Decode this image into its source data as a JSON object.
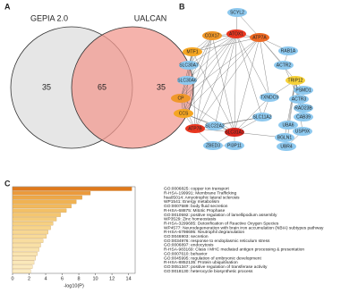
{
  "panels": [
    "A",
    "B",
    "C"
  ],
  "venn": {
    "sets": [
      "GEPIA 2.0",
      "UALCAN"
    ],
    "left_only": "35",
    "both": "65",
    "right_only": "35"
  },
  "network": {
    "nodes": [
      {
        "label": "SCYL2",
        "color": "#8ec9ef"
      },
      {
        "label": "COX17",
        "color": "#f0982a"
      },
      {
        "label": "ATOX1",
        "color": "#e8361f"
      },
      {
        "label": "ATP7A",
        "color": "#ee6a24"
      },
      {
        "label": "MTF1",
        "color": "#f5a623"
      },
      {
        "label": "RAB1A",
        "color": "#8ec9ef"
      },
      {
        "label": "SLC30A7",
        "color": "#8ec9ef"
      },
      {
        "label": "ACTR2",
        "color": "#8ec9ef"
      },
      {
        "label": "SLC30A6",
        "color": "#8ec9ef"
      },
      {
        "label": "TRIP12",
        "color": "#f7d23a"
      },
      {
        "label": "PSMD1",
        "color": "#8ec9ef"
      },
      {
        "label": "CP",
        "color": "#f0982a"
      },
      {
        "label": "TXNDC9",
        "color": "#8ec9ef"
      },
      {
        "label": "ACTR3",
        "color": "#8ec9ef"
      },
      {
        "label": "RAD23B",
        "color": "#8ec9ef"
      },
      {
        "label": "CCS",
        "color": "#f5a623"
      },
      {
        "label": "CAB39",
        "color": "#8ec9ef"
      },
      {
        "label": "SLC11A2",
        "color": "#8ec9ef"
      },
      {
        "label": "UBA6",
        "color": "#8ec9ef"
      },
      {
        "label": "USP9X",
        "color": "#8ec9ef"
      },
      {
        "label": "ATP7B",
        "color": "#e8361f"
      },
      {
        "label": "SLC22A2",
        "color": "#8ec9ef"
      },
      {
        "label": "SLC31A1",
        "color": "#d8241c"
      },
      {
        "label": "BGLN1",
        "color": "#8ec9ef"
      },
      {
        "label": "UBR4",
        "color": "#8ec9ef"
      },
      {
        "label": "ZBED3",
        "color": "#8ec9ef"
      },
      {
        "label": "PI3P11",
        "color": "#8ec9ef"
      }
    ]
  },
  "chart_data": {
    "type": "barh",
    "x_label": "-log10(P)",
    "categories": [
      "GO:0006825: copper ion transport",
      "R-HSA-199991: Membrane Trafficking",
      "hsa05014: Amyotrophic lateral sclerosis",
      "WP1541: Energy metabolism",
      "GO:0007589: body fluid secretion",
      "R-HSA-68875: Mitotic Prophase",
      "GO:0010592: positive regulation of lamellipodium assembly",
      "WP3529: Zinc homeostasis",
      "R-HSA-3299685: Detoxification of Reactive Oxygen Species",
      "WP4577: Neurodegeneration with brain iron accumulation (NBIA) subtypes pathway",
      "R-HSA-6798695: Neutrophil degranulation",
      "GO:0046903: secretion",
      "GO:0034976: response to endoplasmic reticulum stress",
      "GO:0006897: endocytosis",
      "R-HSA-983169: Class I MHC mediated antigen processing & presentation",
      "GO:0007610: behavior",
      "GO:0045995: regulation of embryonic development",
      "R-HSA-8852135: Protein ubiquitination",
      "GO:0051347: positive regulation of transferase activity",
      "GO:0018130: heterocycle biosynthetic process"
    ],
    "values": [
      14.4,
      9.4,
      8.4,
      7.7,
      7.1,
      6.5,
      5.8,
      5.3,
      4.9,
      4.6,
      4.3,
      4.1,
      3.7,
      3.4,
      3.2,
      3.0,
      2.8,
      2.6,
      2.4,
      2.2
    ],
    "colors": [
      "#e07a1c",
      "#ec9a3c",
      "#eea848",
      "#f0b252",
      "#f2b95c",
      "#f3c066",
      "#f4c670",
      "#f5cb79",
      "#f6d082",
      "#f7d48a",
      "#f7d792",
      "#f8da98",
      "#f8dd9f",
      "#f9e0a5",
      "#f9e2ab",
      "#f9e4b0",
      "#fae6b5",
      "#fae8ba",
      "#faeabe",
      "#fbecc2"
    ],
    "xlim": [
      0,
      14.8
    ],
    "xticks": [
      0,
      2,
      4,
      6,
      8,
      10,
      12,
      14
    ]
  }
}
